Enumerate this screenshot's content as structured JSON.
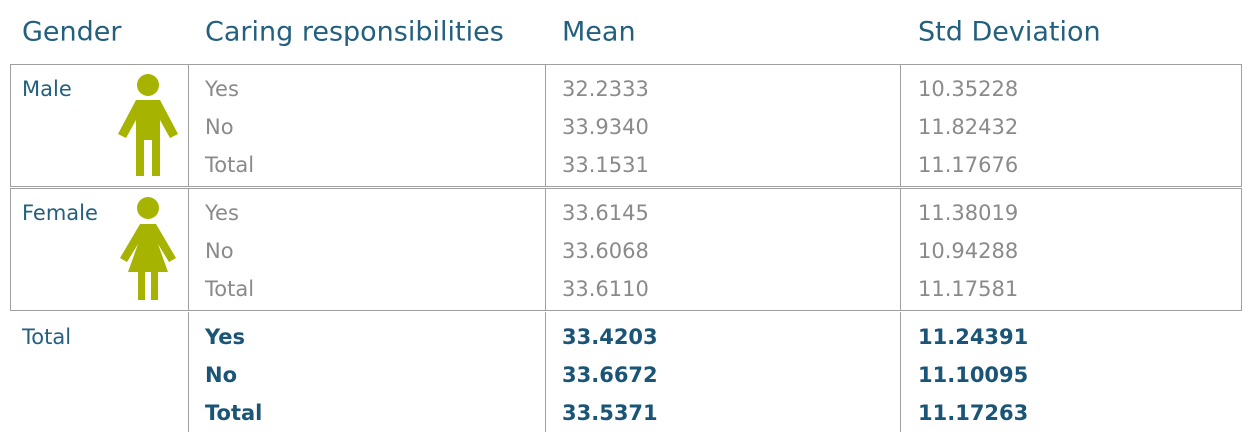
{
  "table": {
    "header": [
      "Gender",
      "Caring responsibilities",
      "Mean",
      "Std Deviation"
    ],
    "groups": [
      {
        "gender": "Male",
        "rows": [
          [
            "Yes",
            "32.2333",
            "10.35228"
          ],
          [
            "No",
            "33.9340",
            "11.82432"
          ],
          [
            "Total",
            "33.1531",
            "11.17676"
          ]
        ]
      },
      {
        "gender": "Female",
        "rows": [
          [
            "Yes",
            "33.6145",
            "11.38019"
          ],
          [
            "No",
            "33.6068",
            "10.94288"
          ],
          [
            "Total",
            "33.6110",
            "11.17581"
          ]
        ]
      },
      {
        "gender": "Total",
        "rows": [
          [
            "Yes",
            "33.4203",
            "11.24391"
          ],
          [
            "No",
            "33.6672",
            "11.10095"
          ],
          [
            "Total",
            "33.5371",
            "11.17263"
          ]
        ]
      }
    ]
  }
}
